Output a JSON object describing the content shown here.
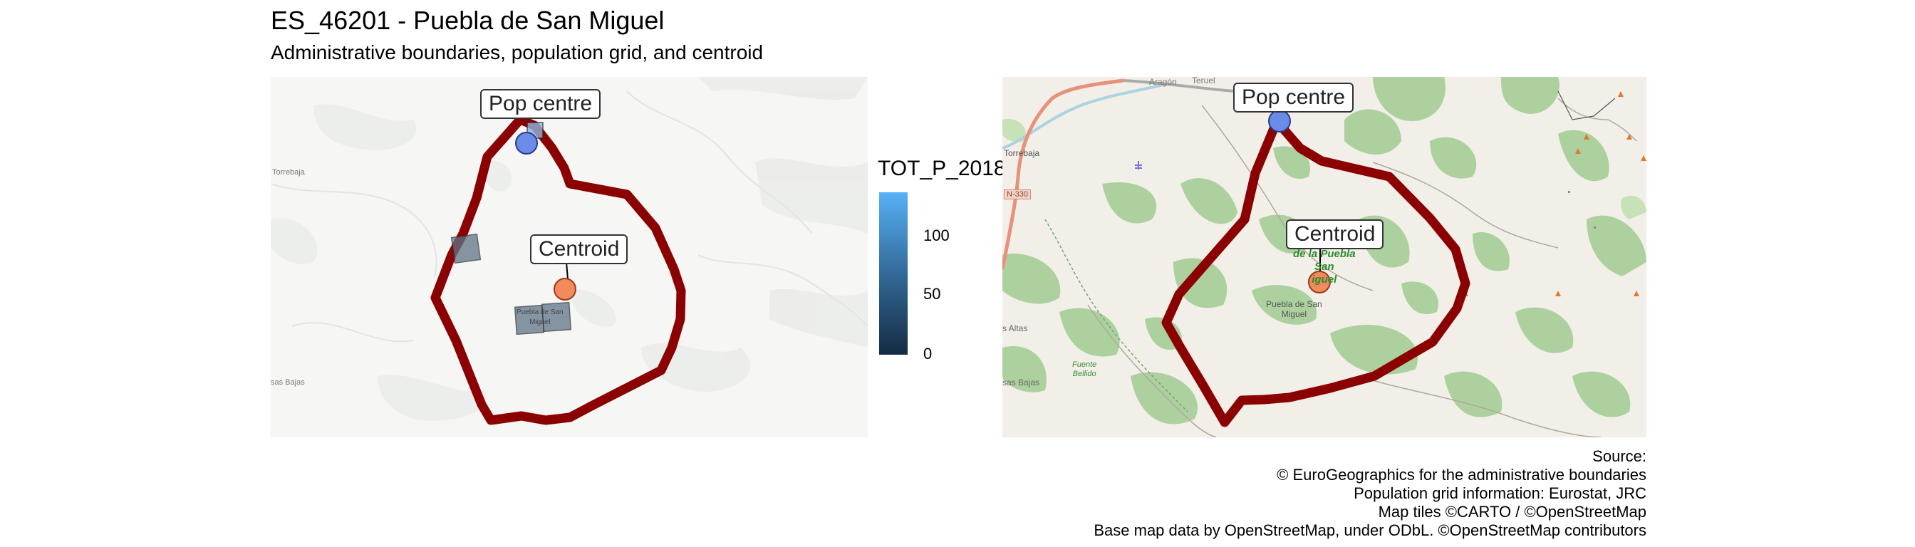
{
  "title": "ES_46201 - Puebla de San Miguel",
  "subtitle": "Administrative boundaries, population grid, and centroid",
  "legend": {
    "title": "TOT_P_2018",
    "ticks": [
      "100",
      "50",
      "0"
    ],
    "colors": {
      "low": "#132b43",
      "high": "#56b1f7"
    }
  },
  "labels": {
    "pop_centre": "Pop centre",
    "centroid": "Centroid"
  },
  "left_map": {
    "places": {
      "torrebaja": "Torrebaja",
      "casas_bajas": "sas Bajas",
      "town_line1": "Puebla de San",
      "town_line2": "Miguel"
    }
  },
  "right_map": {
    "places": {
      "aragon": "Aragón",
      "teruel": "Teruel",
      "torrebaja": "Torrebaja",
      "n330": "N-330",
      "casas_altas": "s Altas",
      "casas_bajas": "sas Bajas",
      "park_line1": "de la Puebla",
      "park_line2": "San",
      "park_line3": "iguel",
      "town_line1": "Puebla de San",
      "town_line2": "Miguel",
      "fuente_line1": "Fuente",
      "fuente_line2": "Bellido"
    }
  },
  "colors": {
    "boundary": "#8b0000",
    "pop_centre": "#6a8be8",
    "centroid": "#f28a5c",
    "grid_cell": "#5f7489"
  },
  "caption": [
    "Source:",
    "© EuroGeographics for the administrative boundaries",
    "Population grid information: Eurostat, JRC",
    "Map tiles ©CARTO / ©OpenStreetMap",
    "Base map data by OpenStreetMap, under ODbL. ©OpenStreetMap contributors"
  ]
}
